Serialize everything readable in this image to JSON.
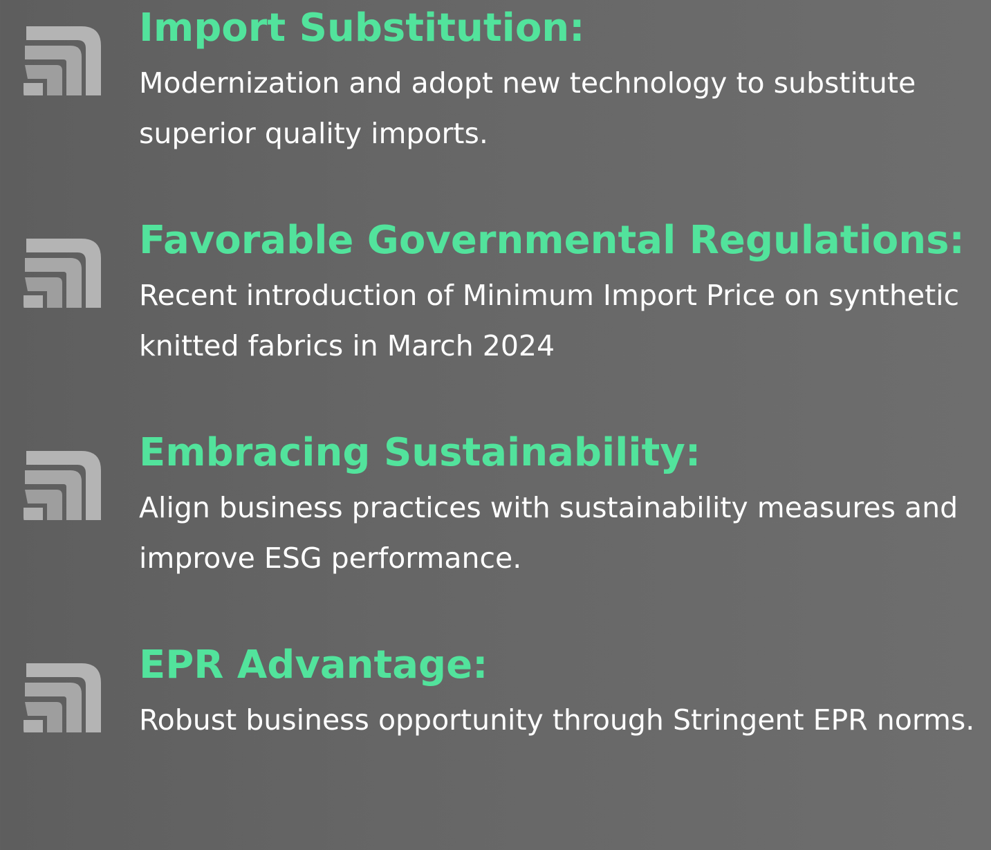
{
  "items": [
    {
      "title": "Import Substitution:",
      "description": "Modernization and adopt new technology to substitute superior quality imports."
    },
    {
      "title": "Favorable Governmental Regulations:",
      "description": "Recent introduction of Minimum Import Price on synthetic knitted fabrics in March 2024"
    },
    {
      "title": "Embracing Sustainability:",
      "description": "Align business practices with sustainability measures and improve ESG performance."
    },
    {
      "title": "EPR Advantage:",
      "description": "Robust business opportunity through Stringent EPR norms."
    }
  ]
}
